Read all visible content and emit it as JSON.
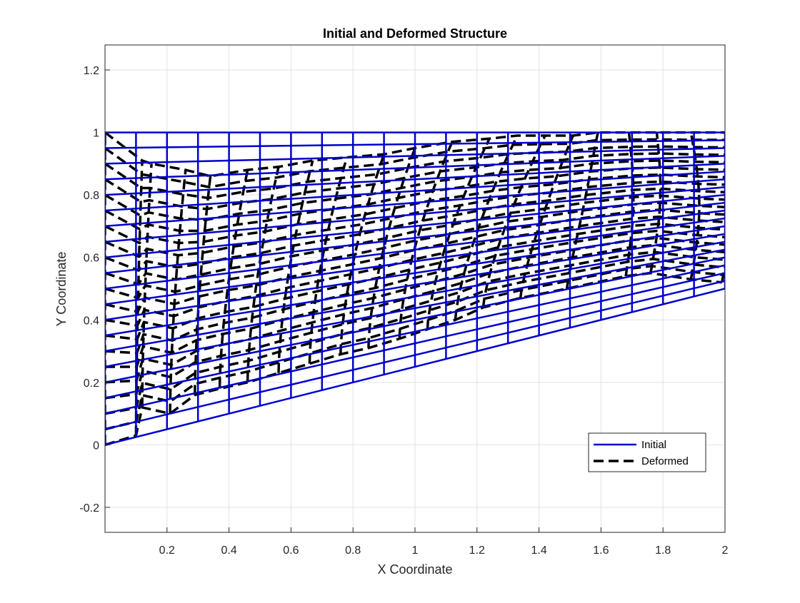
{
  "chart_data": {
    "type": "line",
    "title": "Initial and Deformed Structure",
    "xlabel": "X Coordinate",
    "ylabel": "Y Coordinate",
    "xlim": [
      0,
      2
    ],
    "ylim": [
      -0.28,
      1.28
    ],
    "xticks": [
      0.2,
      0.4,
      0.6,
      0.8,
      1,
      1.2,
      1.4,
      1.6,
      1.8,
      2
    ],
    "xtick_labels": [
      "0.2",
      "0.4",
      "0.6",
      "0.8",
      "1",
      "1.2",
      "1.4",
      "1.6",
      "1.8",
      "2"
    ],
    "yticks": [
      -0.2,
      0,
      0.2,
      0.4,
      0.6,
      0.8,
      1,
      1.2
    ],
    "ytick_labels": [
      "-0.2",
      "0",
      "0.2",
      "0.4",
      "0.6",
      "0.8",
      "1",
      "1.2"
    ],
    "grid": true,
    "box": true,
    "legend_position": "bottom-right",
    "series": [
      {
        "name": "Initial",
        "style": "solid",
        "color": "#0000cc",
        "mesh": {
          "x_range": [
            0,
            2
          ],
          "nx": 20,
          "ny": 20,
          "top_y": [
            1,
            1
          ],
          "bottom_y": [
            0,
            0.5
          ]
        }
      },
      {
        "name": "Deformed",
        "style": "dashed",
        "color": "#000000",
        "columns": [
          {
            "x0": 0,
            "top": 1,
            "xt": 0,
            "bottom": 0,
            "xb": 0
          },
          {
            "x0": 0.1,
            "top": 0.91,
            "xt": 0.12,
            "bottom": 0.03,
            "xb": 0.1
          },
          {
            "x0": 0.2,
            "top": 0.9,
            "xt": 0.15,
            "bottom": 0.12,
            "xb": 0.12
          },
          {
            "x0": 0.3,
            "top": 0.88,
            "xt": 0.26,
            "bottom": 0.1,
            "xb": 0.21
          },
          {
            "x0": 0.4,
            "top": 0.86,
            "xt": 0.34,
            "bottom": 0.16,
            "xb": 0.29
          },
          {
            "x0": 0.5,
            "top": 0.88,
            "xt": 0.46,
            "bottom": 0.18,
            "xb": 0.37
          },
          {
            "x0": 0.6,
            "top": 0.89,
            "xt": 0.56,
            "bottom": 0.2,
            "xb": 0.46
          },
          {
            "x0": 0.7,
            "top": 0.91,
            "xt": 0.67,
            "bottom": 0.23,
            "xb": 0.56
          },
          {
            "x0": 0.8,
            "top": 0.92,
            "xt": 0.78,
            "bottom": 0.26,
            "xb": 0.66
          },
          {
            "x0": 0.9,
            "top": 0.93,
            "xt": 0.9,
            "bottom": 0.29,
            "xb": 0.76
          },
          {
            "x0": 1.0,
            "top": 0.95,
            "xt": 1.0,
            "bottom": 0.31,
            "xb": 0.85
          },
          {
            "x0": 1.1,
            "top": 0.97,
            "xt": 1.12,
            "bottom": 0.34,
            "xb": 0.95
          },
          {
            "x0": 1.2,
            "top": 0.98,
            "xt": 1.24,
            "bottom": 0.37,
            "xb": 1.04
          },
          {
            "x0": 1.3,
            "top": 0.99,
            "xt": 1.33,
            "bottom": 0.4,
            "xb": 1.13
          },
          {
            "x0": 1.4,
            "top": 0.99,
            "xt": 1.42,
            "bottom": 0.44,
            "xb": 1.22
          },
          {
            "x0": 1.5,
            "top": 0.99,
            "xt": 1.51,
            "bottom": 0.47,
            "xb": 1.34
          },
          {
            "x0": 1.6,
            "top": 1.0,
            "xt": 1.59,
            "bottom": 0.5,
            "xb": 1.49
          },
          {
            "x0": 1.7,
            "top": 1.0,
            "xt": 1.69,
            "bottom": 0.54,
            "xb": 1.68
          },
          {
            "x0": 1.8,
            "top": 1.0,
            "xt": 1.78,
            "bottom": 0.55,
            "xb": 1.76
          },
          {
            "x0": 1.9,
            "top": 1.0,
            "xt": 1.89,
            "bottom": 0.53,
            "xb": 1.89
          },
          {
            "x0": 2.0,
            "top": 1.0,
            "xt": 2.0,
            "bottom": 0.52,
            "xb": 1.99
          }
        ]
      }
    ]
  }
}
